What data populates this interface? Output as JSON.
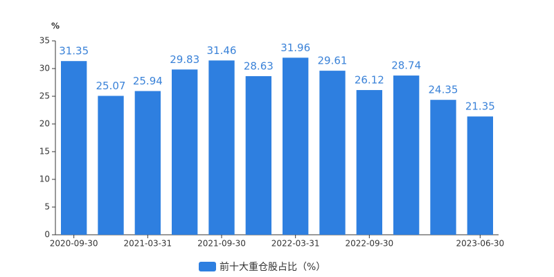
{
  "chart_data": {
    "type": "bar",
    "y_unit": "%",
    "categories": [
      "2020-09-30",
      null,
      "2021-03-31",
      null,
      "2021-09-30",
      null,
      "2022-03-31",
      null,
      "2022-09-30",
      null,
      null,
      "2023-06-30"
    ],
    "series": [
      {
        "name": "前十大重仓股占比（%）",
        "color": "#2e7fe0",
        "values": [
          31.35,
          25.07,
          25.94,
          29.83,
          31.46,
          28.63,
          31.96,
          29.61,
          26.12,
          28.74,
          24.35,
          21.35
        ]
      }
    ],
    "ylim": [
      0,
      35
    ],
    "yticks": [
      0,
      5,
      10,
      15,
      20,
      25,
      30,
      35
    ],
    "grid": false,
    "legend": "bottom"
  }
}
